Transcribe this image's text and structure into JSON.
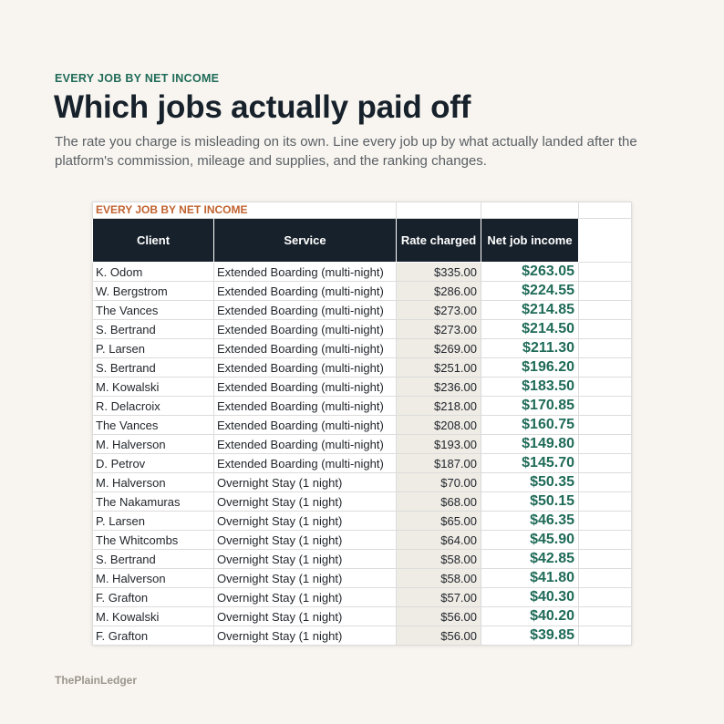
{
  "header": {
    "eyebrow": "EVERY JOB BY NET INCOME",
    "title": "Which jobs actually paid off",
    "subtitle": "The rate you charge is misleading on its own. Line every job up by what actually landed after the platform's commission, mileage and supplies, and the ranking changes."
  },
  "sheet": {
    "label": "EVERY JOB BY NET INCOME",
    "columns": [
      "Client",
      "Service",
      "Rate charged",
      "Net job income"
    ],
    "rows": [
      {
        "client": "K. Odom",
        "service": "Extended Boarding (multi-night)",
        "rate": "$335.00",
        "net": "$263.05"
      },
      {
        "client": "W. Bergstrom",
        "service": "Extended Boarding (multi-night)",
        "rate": "$286.00",
        "net": "$224.55"
      },
      {
        "client": "The Vances",
        "service": "Extended Boarding (multi-night)",
        "rate": "$273.00",
        "net": "$214.85"
      },
      {
        "client": "S. Bertrand",
        "service": "Extended Boarding (multi-night)",
        "rate": "$273.00",
        "net": "$214.50"
      },
      {
        "client": "P. Larsen",
        "service": "Extended Boarding (multi-night)",
        "rate": "$269.00",
        "net": "$211.30"
      },
      {
        "client": "S. Bertrand",
        "service": "Extended Boarding (multi-night)",
        "rate": "$251.00",
        "net": "$196.20"
      },
      {
        "client": "M. Kowalski",
        "service": "Extended Boarding (multi-night)",
        "rate": "$236.00",
        "net": "$183.50"
      },
      {
        "client": "R. Delacroix",
        "service": "Extended Boarding (multi-night)",
        "rate": "$218.00",
        "net": "$170.85"
      },
      {
        "client": "The Vances",
        "service": "Extended Boarding (multi-night)",
        "rate": "$208.00",
        "net": "$160.75"
      },
      {
        "client": "M. Halverson",
        "service": "Extended Boarding (multi-night)",
        "rate": "$193.00",
        "net": "$149.80"
      },
      {
        "client": "D. Petrov",
        "service": "Extended Boarding (multi-night)",
        "rate": "$187.00",
        "net": "$145.70"
      },
      {
        "client": "M. Halverson",
        "service": "Overnight Stay (1 night)",
        "rate": "$70.00",
        "net": "$50.35"
      },
      {
        "client": "The Nakamuras",
        "service": "Overnight Stay (1 night)",
        "rate": "$68.00",
        "net": "$50.15"
      },
      {
        "client": "P. Larsen",
        "service": "Overnight Stay (1 night)",
        "rate": "$65.00",
        "net": "$46.35"
      },
      {
        "client": "The Whitcombs",
        "service": "Overnight Stay (1 night)",
        "rate": "$64.00",
        "net": "$45.90"
      },
      {
        "client": "S. Bertrand",
        "service": "Overnight Stay (1 night)",
        "rate": "$58.00",
        "net": "$42.85"
      },
      {
        "client": "M. Halverson",
        "service": "Overnight Stay (1 night)",
        "rate": "$58.00",
        "net": "$41.80"
      },
      {
        "client": "F. Grafton",
        "service": "Overnight Stay (1 night)",
        "rate": "$57.00",
        "net": "$40.30"
      },
      {
        "client": "M. Kowalski",
        "service": "Overnight Stay (1 night)",
        "rate": "$56.00",
        "net": "$40.20"
      },
      {
        "client": "F. Grafton",
        "service": "Overnight Stay (1 night)",
        "rate": "$56.00",
        "net": "$39.85"
      }
    ]
  },
  "footer": {
    "brand": "ThePlainLedger"
  },
  "colors": {
    "background": "#f8f5f0",
    "header_fill": "#17212b",
    "accent_green": "#1f6b58",
    "label_orange": "#c0622f",
    "rate_fill": "#efebe5"
  }
}
